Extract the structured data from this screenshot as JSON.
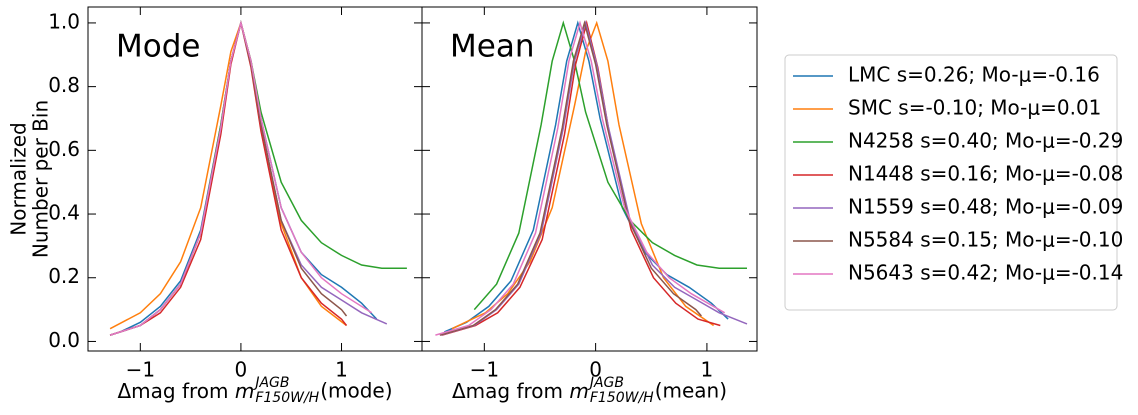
{
  "chart_data": [
    {
      "type": "line",
      "annotation": "Mode",
      "xlabel": [
        "Δmag from ",
        "m",
        "JAGB",
        "F150W/H",
        "(mode)"
      ],
      "ylabel": [
        "Normalized",
        "Number per Bin"
      ],
      "xlim": [
        -1.52,
        1.8
      ],
      "ylim": [
        -0.03,
        1.05
      ],
      "xticks": [
        {
          "value": -1,
          "label": "−1"
        },
        0,
        1
      ],
      "yticks": [
        {
          "value": 0,
          "label": "0.0"
        },
        0.2,
        0.4,
        0.6,
        0.8,
        {
          "value": 1,
          "label": "1.0"
        }
      ],
      "legend": "outside right",
      "series": [
        {
          "name": "LMC s=0.26; Mo-μ=-0.16",
          "color": "#1f77b4",
          "x": [
            -1.2,
            -1.0,
            -0.8,
            -0.6,
            -0.4,
            -0.2,
            -0.1,
            0,
            0.1,
            0.2,
            0.4,
            0.6,
            0.8,
            1.0,
            1.2,
            1.35
          ],
          "values": [
            0.03,
            0.06,
            0.11,
            0.19,
            0.35,
            0.68,
            0.88,
            1.0,
            0.88,
            0.7,
            0.42,
            0.28,
            0.21,
            0.17,
            0.12,
            0.07
          ]
        },
        {
          "name": "SMC s=-0.10; Mo-μ=0.01",
          "color": "#ff7f0e",
          "x": [
            -1.3,
            -1.0,
            -0.8,
            -0.6,
            -0.4,
            -0.2,
            -0.1,
            0,
            0.1,
            0.2,
            0.4,
            0.6,
            0.8,
            1.05
          ],
          "values": [
            0.04,
            0.09,
            0.15,
            0.25,
            0.42,
            0.74,
            0.91,
            1.0,
            0.88,
            0.68,
            0.37,
            0.2,
            0.11,
            0.05
          ]
        },
        {
          "name": "N4258 s=0.40; Mo-μ=-0.29",
          "color": "#2ca02c",
          "x": [
            -1.3,
            -1.0,
            -0.8,
            -0.6,
            -0.4,
            -0.2,
            -0.1,
            0,
            0.1,
            0.2,
            0.4,
            0.6,
            0.8,
            1.0,
            1.2,
            1.4,
            1.65
          ],
          "values": [
            0.02,
            0.05,
            0.1,
            0.18,
            0.34,
            0.68,
            0.88,
            1.0,
            0.88,
            0.72,
            0.5,
            0.38,
            0.31,
            0.27,
            0.24,
            0.23,
            0.23
          ]
        },
        {
          "name": "N1448 s=0.16; Mo-μ=-0.08",
          "color": "#d62728",
          "x": [
            -1.3,
            -1.0,
            -0.8,
            -0.6,
            -0.4,
            -0.2,
            -0.1,
            0,
            0.1,
            0.2,
            0.4,
            0.6,
            0.8,
            1.0,
            1.05
          ],
          "values": [
            0.02,
            0.05,
            0.09,
            0.17,
            0.32,
            0.65,
            0.87,
            1.0,
            0.86,
            0.66,
            0.35,
            0.2,
            0.12,
            0.07,
            0.05
          ]
        },
        {
          "name": "N1559 s=0.48; Mo-μ=-0.09",
          "color": "#9467bd",
          "x": [
            -1.3,
            -1.0,
            -0.8,
            -0.6,
            -0.4,
            -0.2,
            -0.1,
            0,
            0.1,
            0.2,
            0.4,
            0.6,
            0.8,
            1.0,
            1.2,
            1.45
          ],
          "values": [
            0.02,
            0.05,
            0.1,
            0.18,
            0.34,
            0.67,
            0.88,
            1.0,
            0.87,
            0.68,
            0.38,
            0.24,
            0.17,
            0.13,
            0.09,
            0.055
          ]
        },
        {
          "name": "N5584 s=0.15; Mo-μ=-0.10",
          "color": "#8c564b",
          "x": [
            -1.3,
            -1.0,
            -0.8,
            -0.6,
            -0.4,
            -0.2,
            -0.1,
            0,
            0.1,
            0.2,
            0.4,
            0.6,
            0.8,
            1.0,
            1.05
          ],
          "values": [
            0.02,
            0.05,
            0.1,
            0.18,
            0.34,
            0.67,
            0.88,
            1.0,
            0.87,
            0.68,
            0.38,
            0.23,
            0.15,
            0.1,
            0.08
          ]
        },
        {
          "name": "N5643 s=0.42; Mo-μ=-0.14",
          "color": "#e377c2",
          "x": [
            -1.3,
            -1.0,
            -0.8,
            -0.6,
            -0.4,
            -0.2,
            -0.1,
            0,
            0.1,
            0.2,
            0.4,
            0.6,
            0.8,
            1.0,
            1.3
          ],
          "values": [
            0.02,
            0.05,
            0.1,
            0.18,
            0.34,
            0.67,
            0.88,
            1.0,
            0.88,
            0.7,
            0.42,
            0.28,
            0.2,
            0.15,
            0.09
          ]
        }
      ]
    },
    {
      "type": "line",
      "annotation": "Mean",
      "xlabel": [
        "Δmag from ",
        "m",
        "JAGB",
        "F150W/H",
        "(mean)"
      ],
      "xlim": [
        -1.56,
        1.45
      ],
      "ylim": [
        -0.03,
        1.05
      ],
      "xticks": [
        {
          "value": -1,
          "label": "−1"
        },
        0,
        1
      ],
      "series": [
        {
          "color": "#1f77b4",
          "x": [
            -1.36,
            -1.16,
            -0.96,
            -0.76,
            -0.56,
            -0.36,
            -0.26,
            -0.16,
            -0.06,
            0.04,
            0.24,
            0.44,
            0.64,
            0.84,
            1.04,
            1.19
          ],
          "values": [
            0.03,
            0.06,
            0.11,
            0.19,
            0.35,
            0.68,
            0.88,
            1.0,
            0.88,
            0.7,
            0.42,
            0.28,
            0.21,
            0.17,
            0.12,
            0.07
          ]
        },
        {
          "color": "#ff7f0e",
          "x": [
            -1.29,
            -0.99,
            -0.79,
            -0.59,
            -0.39,
            -0.19,
            -0.09,
            0.01,
            0.11,
            0.21,
            0.41,
            0.61,
            0.81,
            1.06
          ],
          "values": [
            0.04,
            0.09,
            0.15,
            0.25,
            0.42,
            0.74,
            0.91,
            1.0,
            0.88,
            0.68,
            0.37,
            0.2,
            0.11,
            0.05
          ]
        },
        {
          "color": "#2ca02c",
          "x": [
            -1.09,
            -0.89,
            -0.69,
            -0.49,
            -0.39,
            -0.29,
            -0.19,
            -0.09,
            0.11,
            0.31,
            0.51,
            0.71,
            0.91,
            1.11,
            1.36
          ],
          "values": [
            0.1,
            0.18,
            0.34,
            0.68,
            0.88,
            1.0,
            0.88,
            0.72,
            0.5,
            0.38,
            0.31,
            0.27,
            0.24,
            0.23,
            0.23
          ]
        },
        {
          "color": "#d62728",
          "x": [
            -1.38,
            -1.08,
            -0.88,
            -0.68,
            -0.48,
            -0.28,
            -0.18,
            -0.08,
            0.02,
            0.12,
            0.32,
            0.52,
            0.72,
            0.92,
            1.12
          ],
          "values": [
            0.02,
            0.05,
            0.09,
            0.17,
            0.32,
            0.65,
            0.87,
            1.0,
            0.86,
            0.66,
            0.35,
            0.2,
            0.12,
            0.07,
            0.05
          ]
        },
        {
          "color": "#9467bd",
          "x": [
            -1.39,
            -1.09,
            -0.89,
            -0.69,
            -0.49,
            -0.29,
            -0.19,
            -0.09,
            0.01,
            0.11,
            0.31,
            0.51,
            0.71,
            0.91,
            1.11,
            1.36
          ],
          "values": [
            0.02,
            0.05,
            0.1,
            0.18,
            0.34,
            0.67,
            0.88,
            1.0,
            0.87,
            0.68,
            0.38,
            0.24,
            0.17,
            0.13,
            0.09,
            0.055
          ]
        },
        {
          "color": "#8c564b",
          "x": [
            -1.4,
            -1.1,
            -0.9,
            -0.7,
            -0.5,
            -0.3,
            -0.2,
            -0.1,
            0,
            0.1,
            0.3,
            0.5,
            0.7,
            0.9,
            0.95
          ],
          "values": [
            0.02,
            0.05,
            0.1,
            0.18,
            0.34,
            0.67,
            0.88,
            1.0,
            0.87,
            0.68,
            0.38,
            0.23,
            0.15,
            0.1,
            0.08
          ]
        },
        {
          "color": "#e377c2",
          "x": [
            -1.44,
            -1.14,
            -0.94,
            -0.74,
            -0.54,
            -0.34,
            -0.24,
            -0.14,
            -0.04,
            0.06,
            0.26,
            0.46,
            0.66,
            0.86,
            1.16
          ],
          "values": [
            0.02,
            0.05,
            0.1,
            0.18,
            0.34,
            0.67,
            0.88,
            1.0,
            0.88,
            0.7,
            0.42,
            0.28,
            0.2,
            0.15,
            0.09
          ]
        }
      ]
    }
  ]
}
